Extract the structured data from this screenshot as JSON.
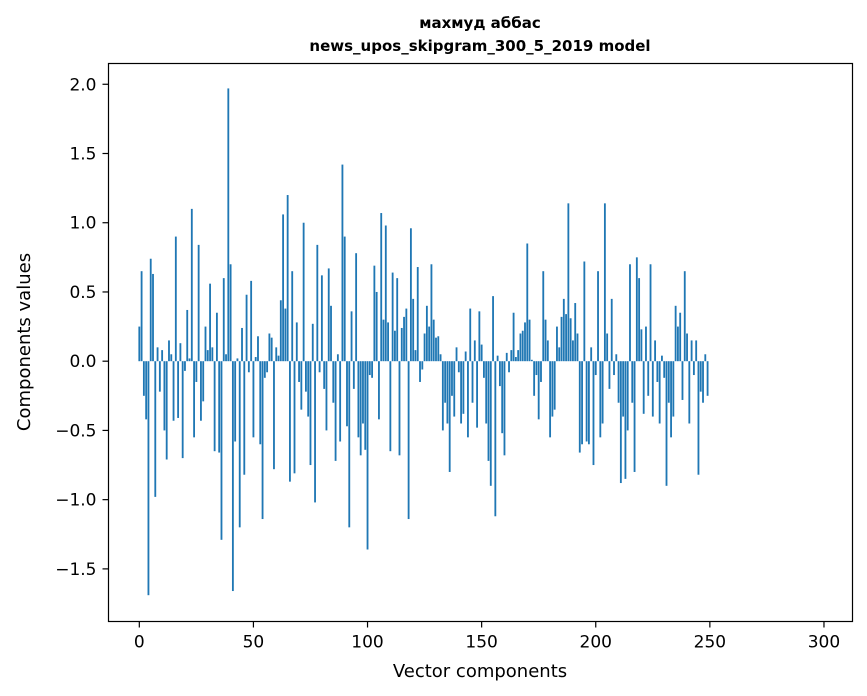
{
  "chart_data": {
    "type": "bar",
    "title_lines": [
      "махмуд аббас",
      "news_upos_skipgram_300_5_2019 model"
    ],
    "xlabel": "Vector components",
    "ylabel": "Components values",
    "xlim": [
      -13.5,
      312.5
    ],
    "ylim": [
      -1.88,
      2.15
    ],
    "xticks": [
      0,
      50,
      100,
      150,
      200,
      250,
      300
    ],
    "yticks": [
      -1.5,
      -1.0,
      -0.5,
      0.0,
      0.5,
      1.0,
      1.5,
      2.0
    ],
    "ytick_labels": [
      "−1.5",
      "−1.0",
      "−0.5",
      "0.0",
      "0.5",
      "1.0",
      "1.5",
      "2.0"
    ],
    "bar_color": "#1f77b4",
    "values": [
      0.25,
      0.65,
      -0.25,
      -0.42,
      -1.69,
      0.74,
      0.63,
      -0.98,
      0.1,
      -0.22,
      0.08,
      -0.5,
      -0.71,
      0.15,
      0.05,
      -0.43,
      0.9,
      -0.41,
      0.13,
      -0.7,
      -0.07,
      0.37,
      0.02,
      1.1,
      -0.55,
      -0.15,
      0.84,
      -0.43,
      -0.29,
      0.25,
      0.08,
      0.56,
      0.1,
      -0.65,
      0.35,
      -0.66,
      -1.29,
      0.6,
      0.05,
      1.97,
      0.7,
      -1.66,
      -0.58,
      0.02,
      -1.2,
      0.24,
      -0.82,
      0.48,
      -0.08,
      0.58,
      -0.55,
      0.03,
      0.18,
      -0.6,
      -1.14,
      -0.12,
      -0.08,
      0.2,
      0.17,
      -0.78,
      0.1,
      0.04,
      0.44,
      1.06,
      0.38,
      1.2,
      -0.87,
      0.65,
      -0.81,
      0.28,
      -0.15,
      -0.35,
      1.0,
      -0.22,
      -0.4,
      -0.75,
      0.27,
      -1.02,
      0.84,
      -0.08,
      0.62,
      -0.2,
      -0.5,
      0.67,
      0.4,
      -0.3,
      -0.72,
      0.05,
      -0.58,
      1.42,
      0.9,
      -0.47,
      -1.2,
      0.36,
      -0.2,
      0.78,
      -0.55,
      -0.68,
      -0.45,
      -0.64,
      -1.36,
      -0.1,
      -0.12,
      0.69,
      0.5,
      -0.42,
      1.07,
      0.3,
      0.98,
      0.28,
      -0.65,
      0.64,
      0.22,
      0.6,
      -0.68,
      0.24,
      0.32,
      0.38,
      -1.14,
      0.96,
      0.45,
      0.08,
      0.68,
      -0.15,
      -0.06,
      0.2,
      0.4,
      0.25,
      0.7,
      0.3,
      0.17,
      0.18,
      0.05,
      -0.5,
      -0.3,
      -0.45,
      -0.8,
      -0.25,
      -0.4,
      0.1,
      -0.08,
      -0.45,
      -0.38,
      0.07,
      -0.55,
      0.38,
      -0.3,
      0.15,
      -0.48,
      0.36,
      0.12,
      -0.12,
      -0.45,
      -0.72,
      -0.9,
      0.47,
      -1.12,
      0.04,
      -0.18,
      -0.52,
      -0.68,
      0.06,
      -0.08,
      0.08,
      0.35,
      0.03,
      0.08,
      0.2,
      0.22,
      0.28,
      0.85,
      0.3,
      0.01,
      -0.25,
      -0.1,
      -0.42,
      -0.15,
      0.65,
      0.3,
      0.15,
      -0.55,
      -0.4,
      -0.35,
      0.25,
      0.1,
      0.32,
      0.45,
      0.34,
      1.14,
      0.31,
      0.15,
      0.42,
      0.2,
      -0.66,
      -0.6,
      0.72,
      -0.58,
      -0.6,
      0.1,
      -0.75,
      -0.1,
      0.65,
      -0.55,
      -0.45,
      1.14,
      0.2,
      -0.2,
      0.45,
      -0.1,
      0.05,
      -0.3,
      -0.88,
      -0.4,
      -0.85,
      -0.5,
      0.7,
      -0.3,
      -0.8,
      0.75,
      0.6,
      0.23,
      -0.38,
      0.25,
      -0.25,
      0.7,
      -0.4,
      0.15,
      -0.15,
      -0.45,
      0.04,
      -0.12,
      -0.9,
      -0.3,
      -0.55,
      -0.4,
      0.4,
      0.25,
      0.35,
      -0.28,
      0.65,
      0.2,
      -0.45,
      0.15,
      -0.1,
      0.15,
      -0.82,
      -0.22,
      -0.3,
      0.05,
      -0.25
    ]
  }
}
